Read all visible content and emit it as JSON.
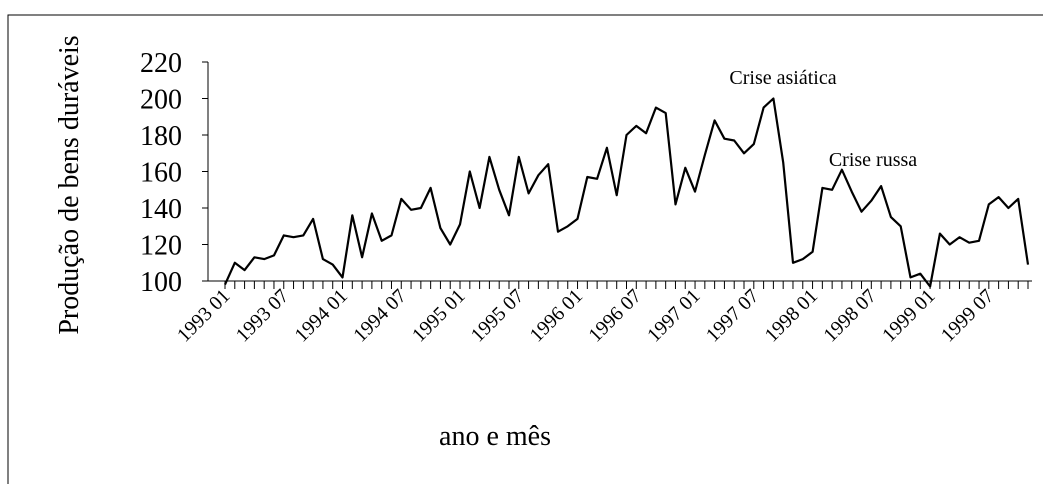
{
  "chart_data": {
    "type": "line",
    "y_label": "Produção de bens duráveis",
    "x_label": "ano e mês",
    "annotations": [
      "Crise asiática",
      "Crise russa"
    ],
    "categories": [
      "1993 01",
      null,
      null,
      null,
      null,
      null,
      "1993 07",
      null,
      null,
      null,
      null,
      null,
      "1994 01",
      null,
      null,
      null,
      null,
      null,
      "1994 07",
      null,
      null,
      null,
      null,
      null,
      "1995 01",
      null,
      null,
      null,
      null,
      null,
      "1995 07",
      null,
      null,
      null,
      null,
      null,
      "1996 01",
      null,
      null,
      null,
      null,
      null,
      "1996 07",
      null,
      null,
      null,
      null,
      null,
      "1997 01",
      null,
      null,
      null,
      null,
      null,
      "1997 07",
      null,
      null,
      null,
      null,
      null,
      "1998 01",
      null,
      null,
      null,
      null,
      null,
      "1998 07",
      null,
      null,
      null,
      null,
      null,
      "1999 01",
      null,
      null,
      null,
      null,
      null,
      "1999 07",
      null,
      null,
      null,
      null
    ],
    "series": [
      {
        "color": "#000000",
        "values": [
          98,
          110,
          106,
          113,
          112,
          114,
          125,
          124,
          125,
          134,
          112,
          109,
          102,
          136,
          113,
          137,
          122,
          125,
          145,
          139,
          140,
          151,
          129,
          120,
          131,
          160,
          140,
          168,
          150,
          136,
          168,
          148,
          158,
          164,
          127,
          130,
          134,
          157,
          156,
          173,
          147,
          180,
          185,
          181,
          195,
          192,
          142,
          162,
          149,
          169,
          188,
          178,
          177,
          170,
          175,
          195,
          200,
          165,
          110,
          112,
          116,
          151,
          150,
          161,
          149,
          138,
          144,
          152,
          135,
          130,
          102,
          104,
          97,
          126,
          120,
          124,
          121,
          122,
          142,
          146,
          140,
          145,
          109
        ]
      }
    ],
    "ylim": [
      100,
      220
    ],
    "yticks": [
      100,
      120,
      140,
      160,
      180,
      200,
      220
    ]
  }
}
